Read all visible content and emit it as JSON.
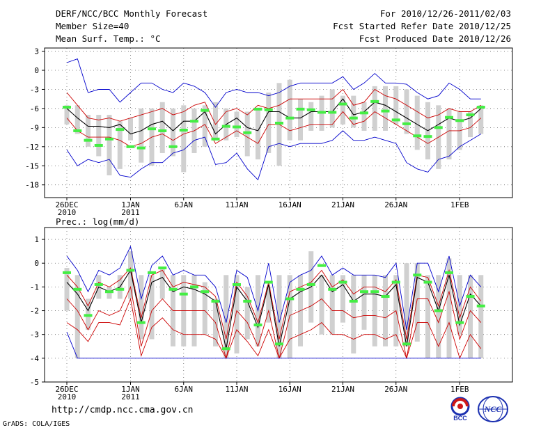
{
  "header": {
    "title": "DERF/NCC/BCC Monthly Forecast",
    "member_size": "Member Size=40",
    "variable": "Mean Surf. Temp.: °C",
    "for_period": "For 2010/12/26-2011/02/03",
    "fcst_started": "Fcst Started Refer Date 2010/12/25",
    "fcst_produced": "Fcst Produced Date 2010/12/26"
  },
  "footer": {
    "url": "http://cmdp.ncc.cma.gov.cn",
    "credit": "GrADS: COLA/IGES",
    "logo_bcc": "BCC",
    "logo_ncc": "NCC"
  },
  "colors": {
    "bar": "#d0d0d0",
    "observed": "#44ee44",
    "mean": "#000000",
    "spread": "#cc0000",
    "extreme": "#0000cc"
  },
  "chart_data": [
    {
      "type": "line",
      "title": "",
      "ylabel": "Mean Surf. Temp.: °C",
      "ylim": [
        -20,
        3.5
      ],
      "yticks": [
        3,
        0,
        -3,
        -6,
        -9,
        -12,
        -15,
        -18
      ],
      "xtick_labels": [
        {
          "day": 0,
          "label": "26DEC",
          "sub": "2010"
        },
        {
          "day": 6,
          "label": "1JAN",
          "sub": "2011"
        },
        {
          "day": 11,
          "label": "6JAN",
          "sub": ""
        },
        {
          "day": 16,
          "label": "11JAN",
          "sub": ""
        },
        {
          "day": 21,
          "label": "16JAN",
          "sub": ""
        },
        {
          "day": 26,
          "label": "21JAN",
          "sub": ""
        },
        {
          "day": 31,
          "label": "26JAN",
          "sub": ""
        },
        {
          "day": 37,
          "label": "1FEB",
          "sub": ""
        }
      ],
      "days": 40,
      "bar_low": [
        -8.5,
        -10,
        -12,
        -13.5,
        -16.5,
        -15.5,
        -11,
        -14.5,
        -15,
        -13,
        -13.5,
        -16,
        -13,
        -12,
        -11,
        -11,
        -10.5,
        -13.5,
        -14,
        -13,
        -15,
        -11,
        -11,
        -9.5,
        -9.5,
        -9,
        -8.5,
        -9,
        -9.5,
        -9.5,
        -9.5,
        -8.5,
        -10,
        -12.5,
        -14,
        -15.5,
        -14,
        -12.5,
        -10.5,
        -10
      ],
      "bar_high": [
        -5.5,
        -5.5,
        -7,
        -7,
        -7,
        -8,
        -7.5,
        -6,
        -6,
        -5,
        -6,
        -5.5,
        -6,
        -5.5,
        -5,
        -6,
        -6.5,
        -6.5,
        -6,
        -3.5,
        -2,
        -1.5,
        -4.5,
        -5,
        -4,
        -3,
        -4,
        -4,
        -5,
        -2.5,
        -2.5,
        -2.5,
        -3,
        -4,
        -5,
        -5.5,
        -6,
        -6.5,
        -6.5,
        -5.5
      ],
      "observed": [
        -5.8,
        -9.5,
        -11,
        -11.8,
        -10.8,
        -9.3,
        -12,
        -12.2,
        -9.2,
        -9.5,
        -12,
        -9.4,
        -8,
        -6.3,
        -10.8,
        -8.8,
        -8.9,
        -9.8,
        -6.1,
        -6.2,
        -8.3,
        -7.5,
        -6.1,
        -6.2,
        -6.6,
        -6.6,
        -5.3,
        -7.5,
        -6.7,
        -4.9,
        -6.4,
        -7.8,
        -8.4,
        -10.3,
        -10.4,
        -9,
        -7.4,
        -7.9,
        -7,
        -5.8
      ],
      "series": [
        {
          "name": "max",
          "color": "extreme",
          "values": [
            1.2,
            1.8,
            -3.5,
            -3,
            -3,
            -5,
            -3.5,
            -2,
            -2,
            -3,
            -3.5,
            -2,
            -2.5,
            -3.5,
            -5.8,
            -3.5,
            -3,
            -3.5,
            -3.5,
            -4,
            -3.5,
            -2.5,
            -2,
            -2,
            -2,
            -2,
            -1,
            -3,
            -2,
            -0.5,
            -2,
            -2,
            -2.2,
            -3.5,
            -4.5,
            -4,
            -2,
            -3,
            -4.5,
            -4.5
          ]
        },
        {
          "name": "p75",
          "color": "spread",
          "values": [
            -3.5,
            -5.5,
            -7.5,
            -7.8,
            -7.5,
            -8,
            -7.5,
            -7,
            -6.5,
            -6,
            -7,
            -6.5,
            -5.5,
            -5,
            -8.5,
            -6.5,
            -6,
            -7,
            -5.5,
            -6,
            -5.5,
            -4.5,
            -4.5,
            -4.5,
            -4.5,
            -4.5,
            -3,
            -5.5,
            -5,
            -3,
            -4,
            -4.5,
            -5.5,
            -6.5,
            -7.5,
            -7,
            -6,
            -6.5,
            -6.5,
            -5.5
          ]
        },
        {
          "name": "mean",
          "color": "mean",
          "values": [
            -6,
            -7.5,
            -8.8,
            -8.8,
            -9,
            -8.5,
            -10,
            -9.5,
            -8.5,
            -8,
            -9.5,
            -8,
            -8,
            -6.5,
            -10,
            -8.5,
            -7.5,
            -9,
            -9.5,
            -6.5,
            -6.5,
            -7.5,
            -7.5,
            -6.5,
            -6.5,
            -6.5,
            -4.5,
            -7,
            -6.5,
            -5,
            -5.5,
            -6.5,
            -7.5,
            -8.5,
            -9.5,
            -8.5,
            -7.5,
            -8,
            -7.5,
            -6
          ]
        },
        {
          "name": "p25",
          "color": "spread",
          "values": [
            -7.5,
            -9.5,
            -10.5,
            -10.5,
            -10.5,
            -11,
            -12,
            -11.5,
            -10.5,
            -10,
            -11,
            -10,
            -9.5,
            -8.5,
            -11.5,
            -10.5,
            -9.5,
            -10.5,
            -11.5,
            -8.5,
            -8.5,
            -9.5,
            -9,
            -8.5,
            -8.5,
            -8.5,
            -6.5,
            -8.5,
            -8,
            -6.5,
            -7.5,
            -8.5,
            -9.5,
            -10.5,
            -11.5,
            -10.5,
            -9.5,
            -9.5,
            -9,
            -7.5
          ]
        },
        {
          "name": "min",
          "color": "extreme",
          "values": [
            -12.5,
            -15,
            -14,
            -14.5,
            -14,
            -16.5,
            -16.8,
            -15.5,
            -14.5,
            -14.5,
            -13,
            -12.5,
            -11,
            -10.5,
            -14.8,
            -14.5,
            -13,
            -15.5,
            -17.2,
            -12,
            -11.5,
            -12,
            -11.5,
            -11.5,
            -11.5,
            -11,
            -9.5,
            -11,
            -11,
            -10.5,
            -11,
            -11.5,
            -14.5,
            -15.5,
            -16,
            -14,
            -13.5,
            -12,
            -11,
            -10
          ]
        }
      ]
    },
    {
      "type": "line",
      "title": "",
      "ylabel": "Prec.: log(mm/d)",
      "ylim": [
        -5,
        1.5
      ],
      "yticks": [
        1,
        0,
        -1,
        -2,
        -3,
        -4,
        -5
      ],
      "xtick_labels": [
        {
          "day": 0,
          "label": "26DEC",
          "sub": "2010"
        },
        {
          "day": 6,
          "label": "1JAN",
          "sub": "2011"
        },
        {
          "day": 11,
          "label": "6JAN",
          "sub": ""
        },
        {
          "day": 16,
          "label": "11JAN",
          "sub": ""
        },
        {
          "day": 21,
          "label": "16JAN",
          "sub": ""
        },
        {
          "day": 26,
          "label": "21JAN",
          "sub": ""
        },
        {
          "day": 31,
          "label": "26JAN",
          "sub": ""
        },
        {
          "day": 37,
          "label": "1FEB",
          "sub": ""
        }
      ],
      "days": 40,
      "bar_low": [
        -2,
        -4,
        -2.8,
        -1.5,
        -1.5,
        -1.5,
        -1.5,
        -3.2,
        -3.2,
        -1.5,
        -3.5,
        -3.5,
        -3.5,
        -3,
        -3.5,
        -4,
        -3.8,
        -3.2,
        -3.5,
        -2.5,
        -4,
        -4,
        -3.5,
        -2.5,
        -3,
        -3,
        -2.5,
        -3.8,
        -2.8,
        -3.5,
        -3.5,
        -3.5,
        -3.5,
        -3.3,
        -4,
        -4,
        -4,
        -3,
        -4,
        -4
      ],
      "bar_high": [
        -0.2,
        -0.5,
        -1.5,
        -0.5,
        -1,
        -0.5,
        0.5,
        -0.5,
        -0.5,
        -0.2,
        -0.5,
        -0.5,
        -0.5,
        -0.8,
        -1.5,
        -0.5,
        -0.5,
        -1,
        -0.5,
        -1,
        -0.5,
        -0.5,
        -0.5,
        0.5,
        -0.5,
        -0.5,
        -0.5,
        -0.5,
        -0.5,
        -0.5,
        -0.5,
        -0.5,
        0,
        0,
        -0.5,
        -0.5,
        0.2,
        -0.5,
        -0.5,
        -0.5
      ],
      "observed": [
        -0.4,
        -1.1,
        -2.2,
        -0.9,
        -1.2,
        -1.1,
        -0.3,
        -2.5,
        -0.4,
        -0.2,
        -1.1,
        -1.3,
        -1.0,
        -1.2,
        -1.6,
        -3.6,
        -0.9,
        -1.6,
        -2.6,
        -0.8,
        -3.4,
        -1.5,
        -1.1,
        -0.9,
        -0.1,
        -1.1,
        -0.8,
        -1.6,
        -1.2,
        -1.2,
        -1.4,
        -0.8,
        -3.4,
        -0.5,
        -0.8,
        -2.0,
        -0.4,
        -2.5,
        -1.4,
        -1.8
      ],
      "series": [
        {
          "name": "max",
          "color": "extreme",
          "values": [
            0.3,
            -0.3,
            -1.2,
            -0.3,
            -0.5,
            -0.2,
            0.7,
            -1.5,
            -0.1,
            0.3,
            -0.5,
            -0.3,
            -0.5,
            -0.5,
            -1,
            -2.5,
            -0.3,
            -0.6,
            -2,
            0,
            -2.5,
            -0.8,
            -0.5,
            -0.3,
            0.3,
            -0.5,
            -0.2,
            -0.5,
            -0.5,
            -0.5,
            -0.6,
            0,
            -2.8,
            0,
            0,
            -1.2,
            0.3,
            -1.8,
            -0.5,
            -1
          ]
        },
        {
          "name": "p75",
          "color": "spread",
          "values": [
            -0.5,
            -1,
            -1.8,
            -0.8,
            -1,
            -0.7,
            -0.2,
            -2.3,
            -0.5,
            -0.3,
            -1,
            -0.8,
            -0.9,
            -1,
            -1.4,
            -3.2,
            -0.8,
            -1.4,
            -2.5,
            -0.8,
            -3.2,
            -1.2,
            -1,
            -0.8,
            -0.3,
            -1,
            -0.7,
            -1.3,
            -1,
            -1,
            -1.2,
            -0.7,
            -3.2,
            -0.5,
            -0.6,
            -1.8,
            -0.3,
            -2.3,
            -1,
            -1.6
          ]
        },
        {
          "name": "mean",
          "color": "mean",
          "values": [
            -0.8,
            -1.3,
            -2,
            -1,
            -1.2,
            -1,
            -0.3,
            -2.5,
            -0.8,
            -0.6,
            -1.2,
            -1,
            -1.1,
            -1.3,
            -1.6,
            -3.6,
            -1,
            -1.6,
            -2.7,
            -0.9,
            -3.5,
            -1.5,
            -1.2,
            -1,
            -0.5,
            -1.2,
            -0.9,
            -1.6,
            -1.3,
            -1.3,
            -1.4,
            -0.9,
            -3.5,
            -0.6,
            -0.8,
            -2,
            -0.5,
            -2.6,
            -1.3,
            -1.8
          ]
        },
        {
          "name": "p25",
          "color": "spread",
          "values": [
            -1.5,
            -2,
            -2.8,
            -2,
            -2.2,
            -2,
            -1,
            -3.5,
            -2,
            -1.5,
            -2,
            -2,
            -2,
            -2,
            -2.5,
            -4,
            -2,
            -2.5,
            -3.5,
            -2,
            -4,
            -2.2,
            -2,
            -1.8,
            -1.5,
            -2,
            -2,
            -2.3,
            -2.2,
            -2.2,
            -2.3,
            -2,
            -4,
            -1.5,
            -1.5,
            -2.5,
            -1.2,
            -3.2,
            -2,
            -2.5
          ]
        },
        {
          "name": "p10",
          "color": "spread",
          "values": [
            -2.5,
            -2.8,
            -3.3,
            -2.5,
            -2.5,
            -2.6,
            -1.5,
            -3.9,
            -2.7,
            -2.3,
            -2.8,
            -3,
            -3,
            -3,
            -3.2,
            -4,
            -2.8,
            -3.3,
            -3.9,
            -2.8,
            -4,
            -3.2,
            -3,
            -2.8,
            -2.5,
            -3,
            -3,
            -3.2,
            -3,
            -3,
            -3.2,
            -3,
            -4,
            -2.5,
            -2.5,
            -3.5,
            -2.5,
            -4,
            -3,
            -3.6
          ]
        },
        {
          "name": "min",
          "color": "extreme",
          "values": [
            -2.9,
            -4,
            -4,
            -4,
            -4,
            -4,
            -4,
            -4,
            -4,
            -4,
            -4,
            -4,
            -4,
            -4,
            -4,
            -4,
            -4,
            -4,
            -4,
            -4,
            -4,
            -4,
            -4,
            -4,
            -4,
            -4,
            -4,
            -4,
            -4,
            -4,
            -4,
            -4,
            -4,
            -4,
            -4,
            -4,
            -4,
            -4,
            -4,
            -4
          ]
        }
      ]
    }
  ]
}
